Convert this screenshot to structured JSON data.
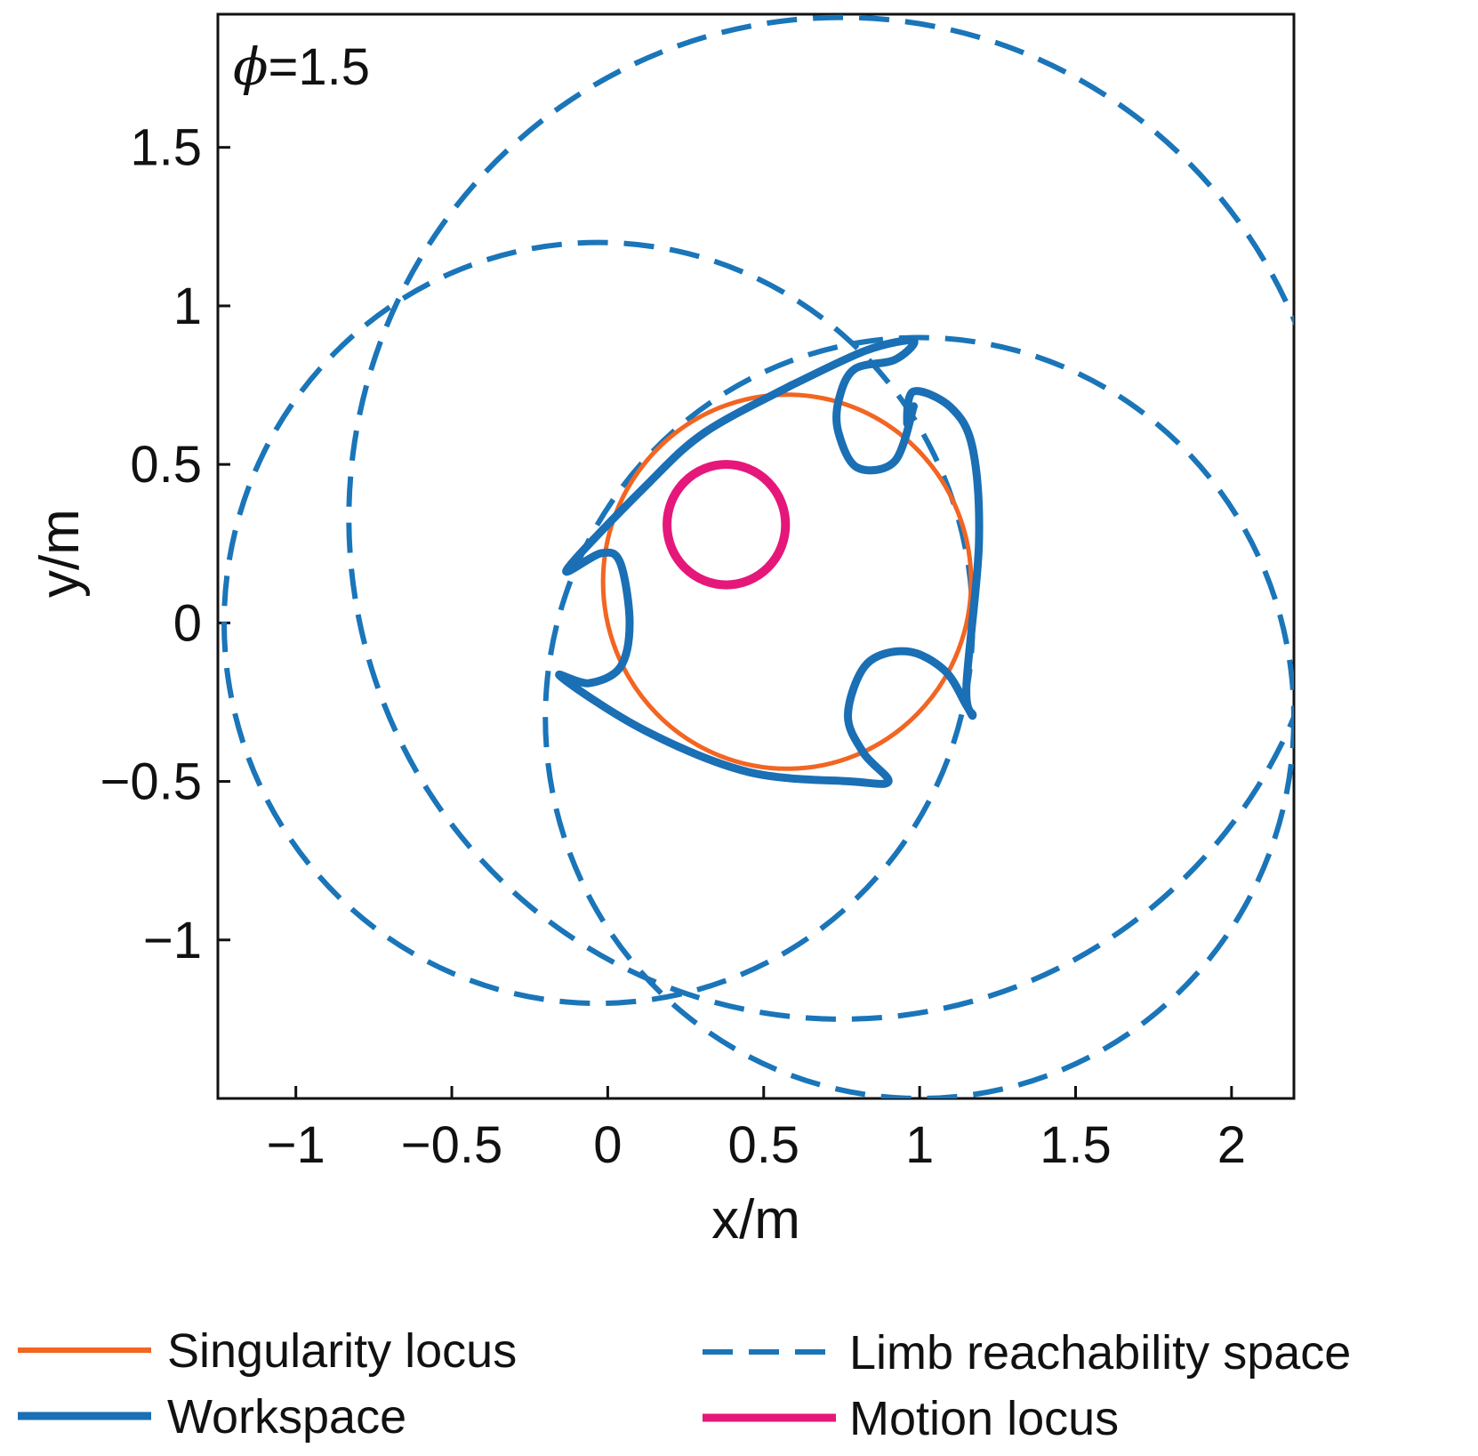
{
  "chart_data": {
    "type": "line",
    "title": "",
    "annotation": {
      "symbol": "ϕ",
      "text": "=1.5"
    },
    "xlabel": "x/m",
    "ylabel": "y/m",
    "xlim": [
      -1.25,
      2.2
    ],
    "ylim": [
      -1.5,
      1.92
    ],
    "xticks": [
      -1,
      -0.5,
      0,
      0.5,
      1,
      1.5,
      2
    ],
    "yticks": [
      -1,
      -0.5,
      0,
      0.5,
      1,
      1.5
    ],
    "xtick_labels": [
      "−1",
      "−0.5",
      "0",
      "0.5",
      "1",
      "1.5",
      "2"
    ],
    "ytick_labels": [
      "−1",
      "−0.5",
      "0",
      "0.5",
      "1",
      "1.5"
    ],
    "grid": false,
    "legend_position": "bottom",
    "colors": {
      "singularity": "#f26522",
      "workspace": "#1a6fb5",
      "reachability": "#1a75b9",
      "motion": "#e6177a"
    },
    "series": [
      {
        "name": "Singularity locus",
        "style": "solid-orange",
        "shape": "circle",
        "center": [
          0.575,
          0.13
        ],
        "radius": 0.59
      },
      {
        "name": "Limb reachability space",
        "style": "dashed-blue",
        "shape": "circles",
        "circles": [
          {
            "center": [
              0.75,
              0.33
            ],
            "radius": 1.58
          },
          {
            "center": [
              -0.03,
              0.0
            ],
            "radius": 1.2
          },
          {
            "center": [
              1.0,
              -0.3
            ],
            "radius": 1.2
          }
        ]
      },
      {
        "name": "Workspace",
        "style": "solid-blue",
        "shape": "closed-curve",
        "x": [
          0.59,
          0.31,
          0.12,
          -0.13,
          -0.02,
          0.04,
          0.07,
          0.04,
          -0.06,
          -0.15,
          0.12,
          0.45,
          0.78,
          0.9,
          0.82,
          0.77,
          0.83,
          0.96,
          1.08,
          1.15,
          1.17,
          1.15,
          1.19,
          1.17,
          1.1,
          0.98,
          0.96,
          0.98,
          0.92,
          0.8,
          0.74,
          0.74,
          0.79,
          0.92,
          0.98,
          0.83,
          0.59
        ],
        "y": [
          0.75,
          0.6,
          0.43,
          0.17,
          0.22,
          0.19,
          0.0,
          -0.14,
          -0.19,
          -0.17,
          -0.34,
          -0.47,
          -0.5,
          -0.5,
          -0.41,
          -0.29,
          -0.13,
          -0.09,
          -0.15,
          -0.26,
          -0.29,
          -0.2,
          0.25,
          0.55,
          0.68,
          0.73,
          0.63,
          0.68,
          0.51,
          0.49,
          0.6,
          0.7,
          0.8,
          0.83,
          0.89,
          0.86,
          0.75
        ]
      },
      {
        "name": "Motion locus",
        "style": "solid-magenta",
        "shape": "circle",
        "center": [
          0.38,
          0.31
        ],
        "radius": 0.19
      }
    ]
  }
}
